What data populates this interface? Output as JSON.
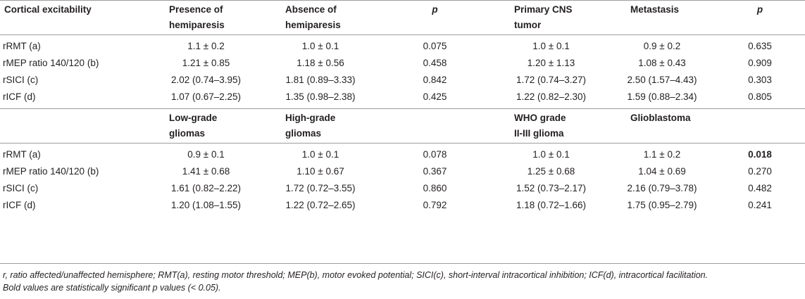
{
  "table": {
    "section1": {
      "headers": [
        "Cortical excitability",
        "Presence of hemiparesis",
        "Absence of hemiparesis",
        "p",
        "Primary CNS tumor",
        "Metastasis",
        "p"
      ],
      "header_lines": [
        [
          "Cortical excitability"
        ],
        [
          "Presence of",
          "hemiparesis"
        ],
        [
          "Absence of",
          "hemiparesis"
        ],
        [
          "p"
        ],
        [
          "Primary CNS",
          "tumor"
        ],
        [
          "Metastasis"
        ],
        [
          "p"
        ]
      ],
      "rows": [
        [
          "rRMT (a)",
          "1.1 ± 0.2",
          "1.0 ± 0.1",
          "0.075",
          "1.0 ± 0.1",
          "0.9 ± 0.2",
          "0.635"
        ],
        [
          "rMEP ratio 140/120 (b)",
          "1.21 ± 0.85",
          "1.18 ± 0.56",
          "0.458",
          "1.20 ± 1.13",
          "1.08 ± 0.43",
          "0.909"
        ],
        [
          "rSICI (c)",
          "2.02 (0.74–3.95)",
          "1.81 (0.89–3.33)",
          "0.842",
          "1.72 (0.74–3.27)",
          "2.50 (1.57–4.43)",
          "0.303"
        ],
        [
          "rICF (d)",
          "1.07 (0.67–2.25)",
          "1.35 (0.98–2.38)",
          "0.425",
          "1.22 (0.82–2.30)",
          "1.59 (0.88–2.34)",
          "0.805"
        ]
      ]
    },
    "section2": {
      "header_lines": [
        [
          ""
        ],
        [
          "Low-grade",
          "gliomas"
        ],
        [
          "High-grade",
          "gliomas"
        ],
        [
          ""
        ],
        [
          "WHO grade",
          "II-III glioma"
        ],
        [
          "Glioblastoma"
        ],
        [
          ""
        ]
      ],
      "rows": [
        [
          "rRMT (a)",
          "0.9 ± 0.1",
          "1.0 ± 0.1",
          "0.078",
          "1.0 ± 0.1",
          "1.1 ± 0.2",
          "0.018"
        ],
        [
          "rMEP ratio 140/120 (b)",
          "1.41 ± 0.68",
          "1.10 ± 0.67",
          "0.367",
          "1.25 ± 0.68",
          "1.04 ± 0.69",
          "0.270"
        ],
        [
          "rSICI (c)",
          "1.61 (0.82–2.22)",
          "1.72 (0.72–3.55)",
          "0.860",
          "1.52 (0.73–2.17)",
          "2.16 (0.79–3.78)",
          "0.482"
        ],
        [
          "rICF (d)",
          "1.20 (1.08–1.55)",
          "1.22 (0.72–2.65)",
          "0.792",
          "1.18 (0.72–1.66)",
          "1.75 (0.95–2.79)",
          "0.241"
        ]
      ],
      "bold_cells": [
        [
          0,
          6
        ]
      ]
    }
  },
  "footnote": {
    "line1": "r, ratio affected/unaffected hemisphere; RMT(a), resting motor threshold; MEP(b), motor evoked potential; SICI(c), short-interval intracortical inhibition; ICF(d), intracortical facilitation.",
    "line2": "Bold values are statistically significant p values (< 0.05)."
  }
}
